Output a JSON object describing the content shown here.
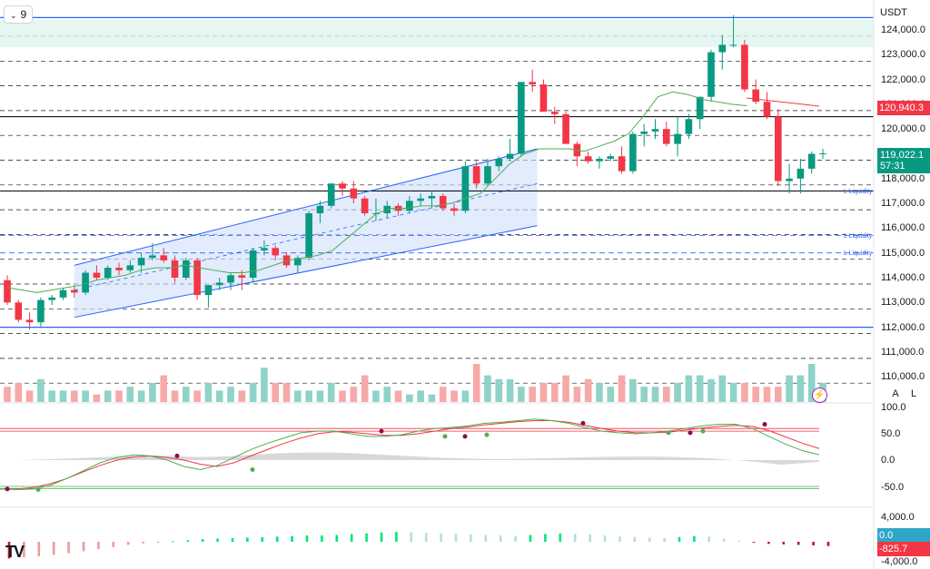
{
  "timeframe": "9",
  "currency": "USDT",
  "price_axis": {
    "ticks": [
      "124,000.0",
      "123,000.0",
      "122,000.0",
      "121,000.0",
      "120,000.0",
      "119,000.0",
      "118,000.0",
      "117,000.0",
      "116,000.0",
      "115,000.0",
      "114,000.0",
      "113,000.0",
      "112,000.0",
      "111,000.0",
      "110,000.0"
    ],
    "last_price": "119,022.1",
    "countdown": "57:31",
    "ma_price": "120,940.3"
  },
  "liquidity_label": "L Liquidity",
  "toggles": {
    "auto": "A",
    "log": "L"
  },
  "stoch_axis": {
    "ticks": [
      "100.0",
      "50.0",
      "0.0",
      "-50.0"
    ]
  },
  "macd_axis": {
    "ticks": [
      "4,000.0",
      "-4,000.0"
    ],
    "value_zero": "0.0",
    "value": "-825.7"
  },
  "logo": "TV",
  "chart_data": [
    {
      "type": "candlestick",
      "note": "values in USDT read from right price axis",
      "ohlc": [
        [
          113900,
          114100,
          112900,
          113000
        ],
        [
          113000,
          113100,
          112200,
          112300
        ],
        [
          112300,
          112600,
          111900,
          112200
        ],
        [
          112200,
          113200,
          112000,
          113100
        ],
        [
          113100,
          113300,
          112900,
          113200
        ],
        [
          113200,
          113600,
          113100,
          113500
        ],
        [
          113500,
          113700,
          113200,
          113400
        ],
        [
          113400,
          114300,
          113300,
          114200
        ],
        [
          114200,
          114500,
          113900,
          114000
        ],
        [
          114000,
          114500,
          113900,
          114400
        ],
        [
          114400,
          114600,
          114100,
          114300
        ],
        [
          114300,
          114700,
          114200,
          114500
        ],
        [
          114500,
          115000,
          114200,
          114800
        ],
        [
          114800,
          115400,
          114700,
          114900
        ],
        [
          114900,
          115200,
          114600,
          114700
        ],
        [
          114700,
          114900,
          113800,
          114000
        ],
        [
          114000,
          114800,
          113900,
          114700
        ],
        [
          114700,
          114800,
          113100,
          113300
        ],
        [
          113300,
          113700,
          112800,
          113700
        ],
        [
          113700,
          114000,
          113500,
          113800
        ],
        [
          113800,
          114200,
          113500,
          114100
        ],
        [
          114100,
          114300,
          113500,
          114000
        ],
        [
          114000,
          115200,
          113800,
          115100
        ],
        [
          115100,
          115500,
          114900,
          115200
        ],
        [
          115200,
          115300,
          114700,
          114900
        ],
        [
          114900,
          115000,
          114400,
          114500
        ],
        [
          114500,
          114900,
          114200,
          114800
        ],
        [
          114800,
          116700,
          114700,
          116600
        ],
        [
          116600,
          117100,
          116200,
          116900
        ],
        [
          116900,
          117800,
          116800,
          117800
        ],
        [
          117800,
          117900,
          117300,
          117600
        ],
        [
          117600,
          117900,
          117000,
          117200
        ],
        [
          117200,
          117300,
          116500,
          116600
        ],
        [
          116600,
          117200,
          116300,
          116600
        ],
        [
          116600,
          117100,
          116400,
          116900
        ],
        [
          116900,
          117000,
          116500,
          116700
        ],
        [
          116700,
          117300,
          116600,
          117100
        ],
        [
          117100,
          117400,
          116900,
          117200
        ],
        [
          117200,
          117500,
          116800,
          117300
        ],
        [
          117300,
          117400,
          116700,
          116800
        ],
        [
          116800,
          117000,
          116500,
          116700
        ],
        [
          116700,
          118700,
          116600,
          118500
        ],
        [
          118500,
          118700,
          117600,
          117800
        ],
        [
          117800,
          118800,
          117700,
          118500
        ],
        [
          118500,
          118900,
          118300,
          118800
        ],
        [
          118800,
          119600,
          118700,
          119000
        ],
        [
          119000,
          121900,
          118900,
          121900
        ],
        [
          121900,
          122400,
          121500,
          121800
        ],
        [
          121800,
          122000,
          120700,
          120700
        ],
        [
          120700,
          120900,
          120200,
          120600
        ],
        [
          120600,
          120700,
          119400,
          119400
        ],
        [
          119400,
          119500,
          118500,
          118900
        ],
        [
          118900,
          119100,
          118600,
          118700
        ],
        [
          118700,
          118900,
          118400,
          118800
        ],
        [
          118800,
          119000,
          118700,
          118900
        ],
        [
          118900,
          119300,
          118200,
          118300
        ],
        [
          118300,
          119900,
          118200,
          119800
        ],
        [
          119800,
          120200,
          119300,
          119900
        ],
        [
          119900,
          120400,
          119600,
          120000
        ],
        [
          120000,
          120300,
          119300,
          119400
        ],
        [
          119400,
          120500,
          118900,
          119800
        ],
        [
          119800,
          120600,
          119600,
          120400
        ],
        [
          120400,
          121300,
          120000,
          121300
        ],
        [
          121300,
          123200,
          121100,
          123100
        ],
        [
          123100,
          123800,
          122400,
          123400
        ],
        [
          123400,
          124600,
          123300,
          123400
        ],
        [
          123400,
          123600,
          121500,
          121600
        ],
        [
          121600,
          122000,
          121000,
          121100
        ],
        [
          121100,
          121500,
          120400,
          120500
        ],
        [
          120500,
          120800,
          117700,
          117900
        ],
        [
          117900,
          118600,
          117400,
          118000
        ],
        [
          118000,
          118800,
          117400,
          118400
        ],
        [
          118400,
          119100,
          118200,
          119000
        ],
        [
          119000,
          119200,
          118800,
          119022
        ]
      ],
      "volume_relative": [
        0.4,
        0.5,
        0.3,
        0.6,
        0.3,
        0.3,
        0.3,
        0.3,
        0.2,
        0.3,
        0.3,
        0.4,
        0.3,
        0.5,
        0.7,
        0.3,
        0.4,
        0.3,
        0.5,
        0.3,
        0.4,
        0.3,
        0.5,
        0.9,
        0.5,
        0.5,
        0.3,
        0.3,
        0.3,
        0.5,
        0.3,
        0.4,
        0.7,
        0.3,
        0.4,
        0.3,
        0.2,
        0.3,
        0.2,
        0.4,
        0.3,
        0.3,
        1.0,
        0.7,
        0.6,
        0.6,
        0.4,
        0.4,
        0.5,
        0.5,
        0.7,
        0.4,
        0.6,
        0.5,
        0.4,
        0.7,
        0.6,
        0.4,
        0.4,
        0.4,
        0.5,
        0.7,
        0.7,
        0.6,
        0.7,
        0.5,
        0.5,
        0.4,
        0.4,
        0.4,
        0.7,
        0.7,
        1.0,
        0.5,
        0.6,
        0.5,
        0.4,
        0.6,
        1.0,
        1.0,
        1.0,
        0.7,
        0.8,
        0.6,
        0.4,
        2.6,
        0.6,
        0.4,
        0.4
      ],
      "ma_line": [
        113600,
        113500,
        113400,
        113500,
        113600,
        113700,
        113900,
        114000,
        114100,
        114300,
        114400,
        114400,
        114500,
        114400,
        114300,
        114200,
        114200,
        114300,
        114500,
        114700,
        114800,
        114900,
        115100,
        115600,
        116100,
        116600,
        116800,
        116800,
        116900,
        116900,
        117000,
        117200,
        117400,
        118000,
        118600,
        119000,
        119200,
        119200,
        119200,
        119100,
        119300,
        119500,
        119800,
        120500,
        121300,
        121500,
        121400,
        121200,
        121100,
        121000,
        120940
      ],
      "channel": {
        "upper": [
          114500,
          119200
        ],
        "lower": [
          112400,
          116100
        ],
        "mid": [
          113500,
          117800
        ]
      },
      "horizontal_levels": [
        {
          "price": 124500,
          "kind": "resistance"
        },
        {
          "price": 120500,
          "kind": "solid"
        },
        {
          "price": 117500,
          "kind": "solid",
          "label": "L Liquidity"
        },
        {
          "price": 112000,
          "kind": "support"
        }
      ],
      "liquidity_levels": [
        115700,
        115000
      ],
      "stochastic": {
        "range": [
          -70,
          110
        ],
        "levels": [
          60,
          55,
          -50,
          -54
        ],
        "k": [
          -55,
          -56,
          -55,
          -48,
          -35,
          -20,
          -5,
          5,
          10,
          8,
          0,
          -12,
          -18,
          -10,
          5,
          20,
          32,
          42,
          52,
          55,
          55,
          50,
          45,
          45,
          48,
          55,
          60,
          62,
          65,
          70,
          72,
          75,
          78,
          75,
          70,
          62,
          55,
          52,
          50,
          52,
          55,
          60,
          65,
          68,
          68,
          60,
          45,
          30,
          18,
          10
        ],
        "d": [
          -55,
          -55,
          -52,
          -45,
          -35,
          -22,
          -10,
          0,
          6,
          8,
          5,
          0,
          -8,
          -12,
          -5,
          8,
          20,
          32,
          42,
          50,
          54,
          53,
          50,
          47,
          47,
          50,
          55,
          60,
          63,
          67,
          70,
          73,
          75,
          75,
          72,
          66,
          60,
          55,
          52,
          52,
          53,
          57,
          61,
          64,
          66,
          64,
          56,
          44,
          32,
          22
        ]
      },
      "macd": {
        "range": [
          -4000,
          4000
        ],
        "hist": [
          -3200,
          -3000,
          -2800,
          -2500,
          -2200,
          -1800,
          -1400,
          -1000,
          -600,
          -300,
          -100,
          100,
          300,
          500,
          600,
          700,
          800,
          900,
          1000,
          1100,
          1200,
          1200,
          1300,
          1500,
          1600,
          1800,
          1900,
          1800,
          1700,
          1600,
          1500,
          1400,
          1300,
          1200,
          1100,
          1300,
          1500,
          1600,
          1500,
          1400,
          1200,
          1000,
          900,
          800,
          700,
          900,
          1100,
          1000,
          600,
          200,
          -200,
          -400,
          -500,
          -600,
          -700,
          -825.7
        ]
      }
    }
  ]
}
